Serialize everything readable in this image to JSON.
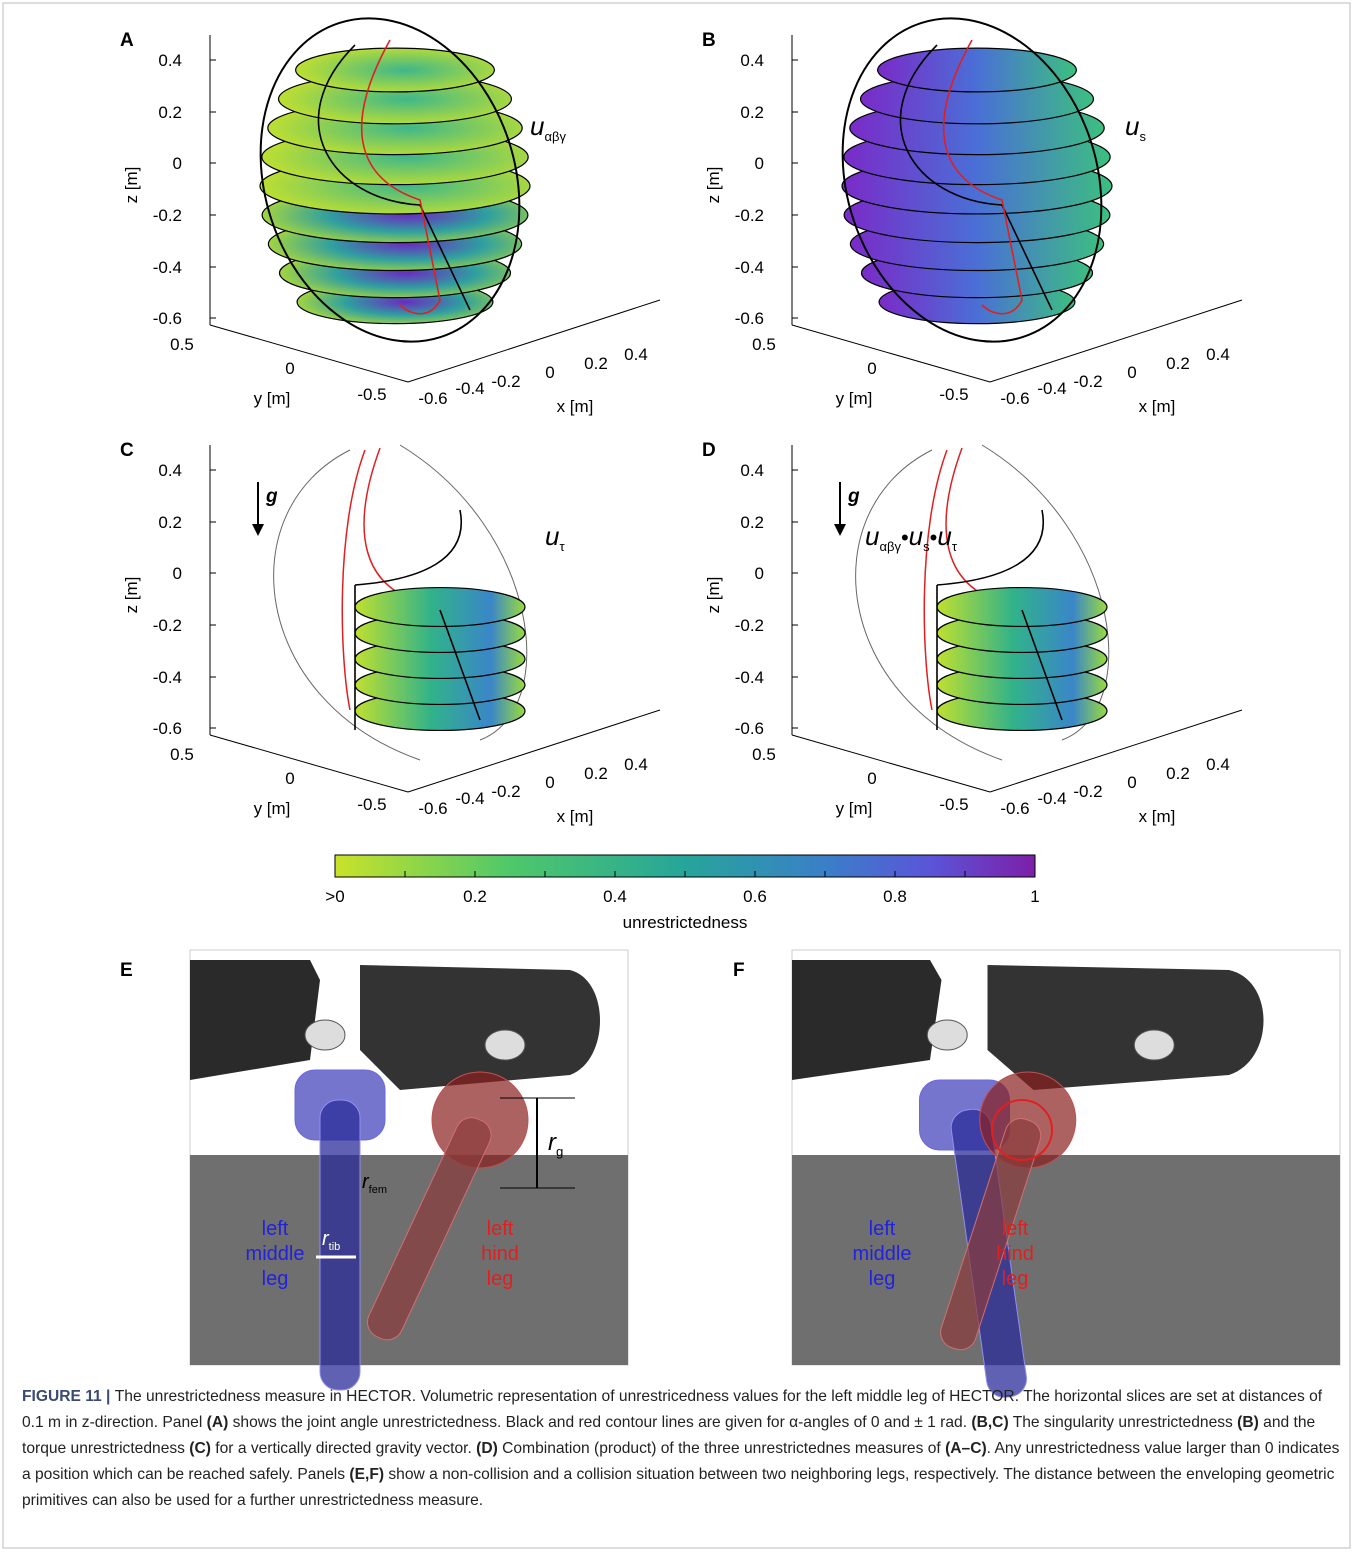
{
  "panels": [
    {
      "label": "A",
      "measure": [
        {
          "symbol": "u",
          "subscript": "αβγ"
        }
      ]
    },
    {
      "label": "B",
      "measure": [
        {
          "symbol": "u",
          "subscript": "s"
        }
      ]
    },
    {
      "label": "C",
      "measure": [
        {
          "symbol": "u",
          "subscript": "τ"
        }
      ],
      "gravity": "g"
    },
    {
      "label": "D",
      "measure": [
        {
          "symbol": "u",
          "subscript": "αβγ"
        },
        {
          "symbol": "u",
          "subscript": "s"
        },
        {
          "symbol": "u",
          "subscript": "τ"
        }
      ],
      "operator": "•",
      "gravity": "g"
    }
  ],
  "axes": {
    "z_label": "z [m]",
    "z_ticks": [
      "0.4",
      "0.2",
      "0",
      "-0.2",
      "-0.4",
      "-0.6"
    ],
    "y_label": "y [m]",
    "y_ticks": [
      "0.5",
      "0",
      "-0.5"
    ],
    "x_label": "x [m]",
    "x_ticks": [
      "-0.6",
      "-0.4",
      "-0.2",
      "0",
      "0.2",
      "0.4"
    ]
  },
  "colorbar": {
    "ticks": [
      ">0",
      "0.2",
      "0.4",
      "0.6",
      "0.8",
      "1"
    ],
    "label": "unrestrictedness"
  },
  "renders": [
    {
      "label": "E",
      "radii": [
        {
          "symbol": "r",
          "subscript": "g"
        },
        {
          "symbol": "r",
          "subscript": "fem"
        },
        {
          "symbol": "r",
          "subscript": "tib"
        }
      ],
      "legs": [
        [
          "left",
          "middle",
          "leg"
        ],
        [
          "left",
          "hind",
          "leg"
        ]
      ]
    },
    {
      "label": "F",
      "legs": [
        [
          "left",
          "middle",
          "leg"
        ],
        [
          "left",
          "hind",
          "leg"
        ]
      ]
    }
  ],
  "caption": [
    {
      "text": "FIGURE 11 | ",
      "bold": true
    },
    {
      "text": "The unrestrictedness measure in HECTOR. Volumetric representation of unrestricedness values for the left middle leg of HECTOR. The horizontal slices are set at distances of 0.1 m in z-direction. Panel ",
      "bold": false
    },
    {
      "text": "(A)",
      "bold": true
    },
    {
      "text": " shows the joint angle unrestrictedness. Black and red contour lines are given for α-angles of 0 and ± 1 rad. ",
      "bold": false
    },
    {
      "text": "(B,C)",
      "bold": true
    },
    {
      "text": " The singularity unrestrictedness ",
      "bold": false
    },
    {
      "text": "(B)",
      "bold": true
    },
    {
      "text": " and the torque unrestrictedness ",
      "bold": false
    },
    {
      "text": "(C)",
      "bold": true
    },
    {
      "text": " for a vertically directed gravity vector. ",
      "bold": false
    },
    {
      "text": "(D)",
      "bold": true
    },
    {
      "text": " Combination (product) of the three unrestrictednes measures of ",
      "bold": false
    },
    {
      "text": "(A–C)",
      "bold": true
    },
    {
      "text": ". Any unrestrictedness value larger than 0 indicates a position which can be reached safely. Panels ",
      "bold": false
    },
    {
      "text": "(E,F)",
      "bold": true
    },
    {
      "text": " show a non-collision and a collision situation between two neighboring legs, respectively. The distance between the enveloping geometric primitives can also be used for a further unrestrictedness measure.",
      "bold": false
    }
  ]
}
